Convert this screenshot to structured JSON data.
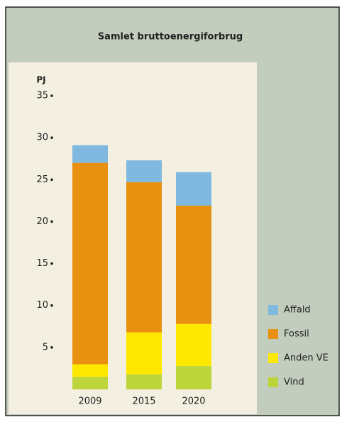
{
  "chart_data": {
    "type": "bar",
    "stacked": true,
    "title": "Samlet bruttoenergiforbrug",
    "ylabel": "PJ",
    "categories": [
      "2009",
      "2015",
      "2020"
    ],
    "series": [
      {
        "name": "Vind",
        "color": "#bcd53a",
        "values": [
          1.5,
          1.8,
          2.8
        ]
      },
      {
        "name": "Anden VE",
        "color": "#ffe800",
        "values": [
          1.5,
          5.0,
          5.0
        ]
      },
      {
        "name": "Fossil",
        "color": "#e8900f",
        "values": [
          24.0,
          17.9,
          14.1
        ]
      },
      {
        "name": "Affald",
        "color": "#7fb9e0",
        "values": [
          2.1,
          2.6,
          4.0
        ]
      }
    ],
    "ylim": [
      0,
      35
    ],
    "yticks": [
      5,
      10,
      15,
      20,
      25,
      30,
      35
    ],
    "grid": false,
    "legend": "lower right"
  }
}
